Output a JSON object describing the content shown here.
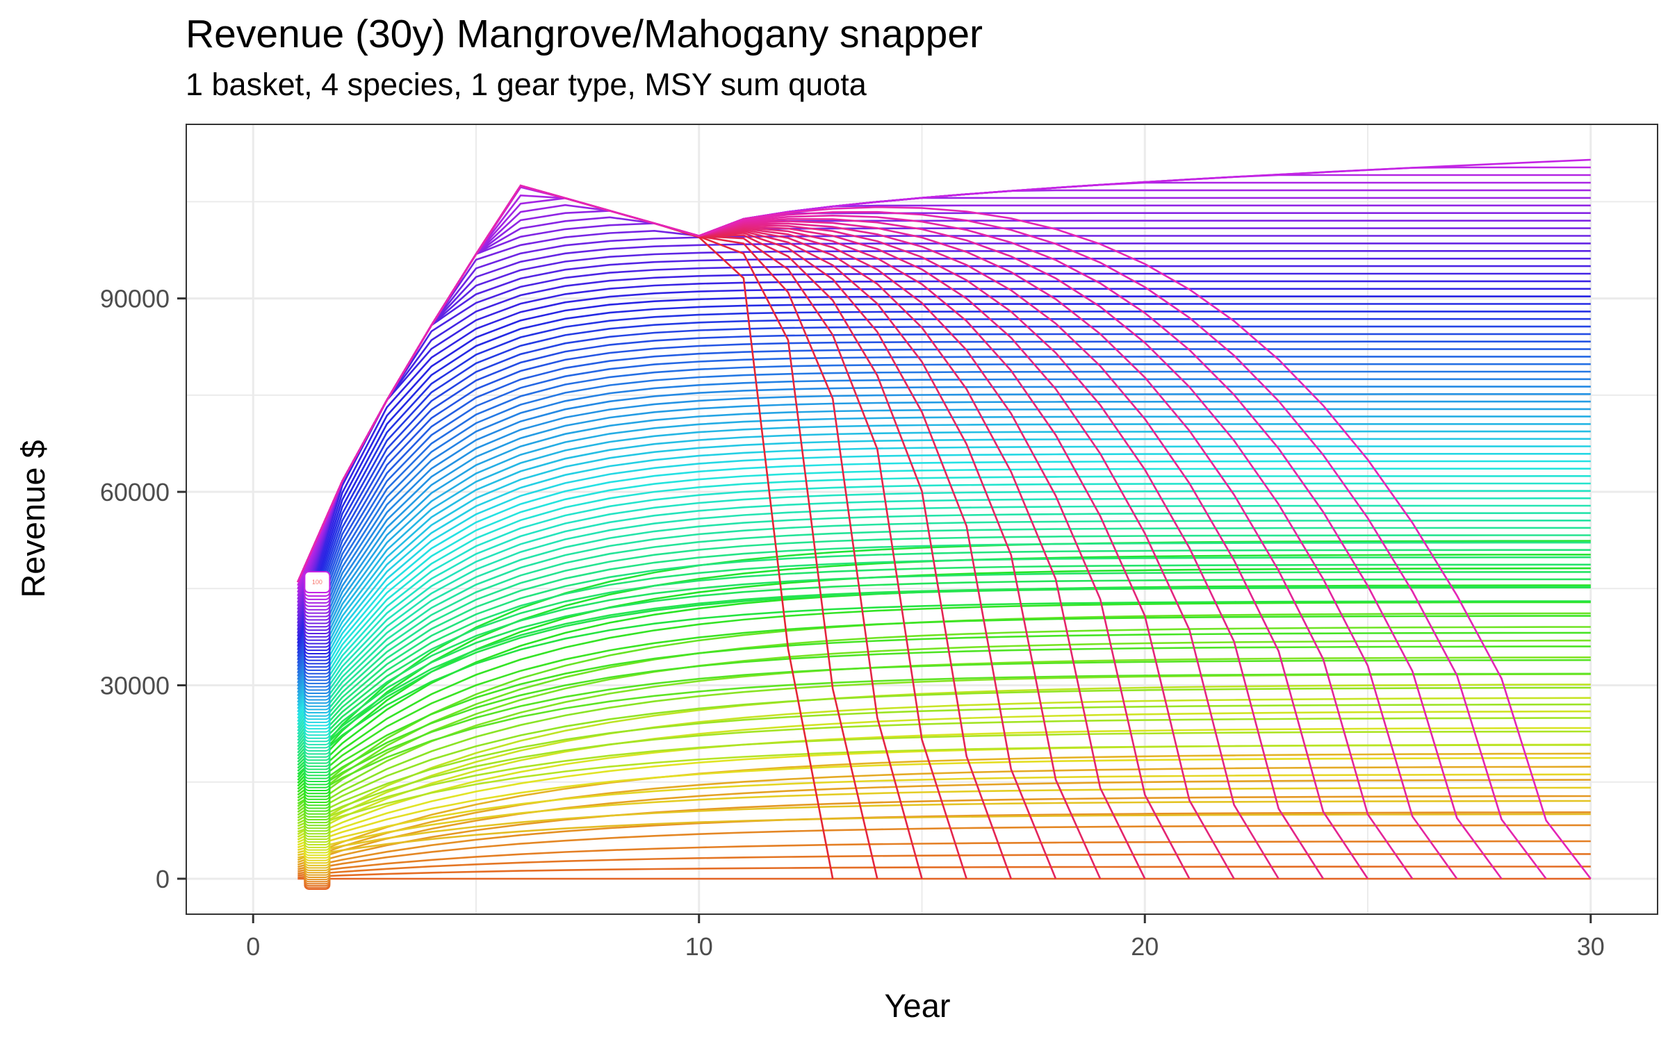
{
  "chart_data": {
    "type": "line",
    "title": "Revenue (30y) Mangrove/Mahogany snapper",
    "subtitle": "1 basket, 4 species, 1 gear type, MSY sum quota",
    "xlabel": "Year",
    "ylabel": "Revenue $",
    "xlim": [
      -1.5,
      31.5
    ],
    "ylim": [
      -5500,
      117000
    ],
    "x_ticks": [
      "0",
      "10",
      "20",
      "30"
    ],
    "y_ticks": [
      "0",
      "30000",
      "60000",
      "90000"
    ],
    "x_tick_values": [
      0,
      10,
      20,
      30
    ],
    "y_tick_values": [
      0,
      30000,
      60000,
      90000
    ],
    "grid": true,
    "legend": "none",
    "years": [
      1,
      30
    ],
    "series_count": 100,
    "series_naming": "numeric 1-100 (label shown only for 100)",
    "start_label": "100",
    "start_range": [
      0,
      46000
    ],
    "plateau_peak_year": 6,
    "plateau_peak_value": 107500,
    "plateau_dip_year": 10,
    "plateau_dip_value": 99700,
    "final_max_value": 111500,
    "collapse_years": [
      13,
      14,
      15,
      16,
      17,
      18,
      19,
      20,
      21,
      22,
      23,
      24,
      25,
      26,
      27,
      28,
      29,
      30
    ],
    "low_final_values": [
      0,
      1000,
      2000,
      3000,
      4500,
      5500,
      7000,
      8500,
      9500,
      10500
    ]
  }
}
